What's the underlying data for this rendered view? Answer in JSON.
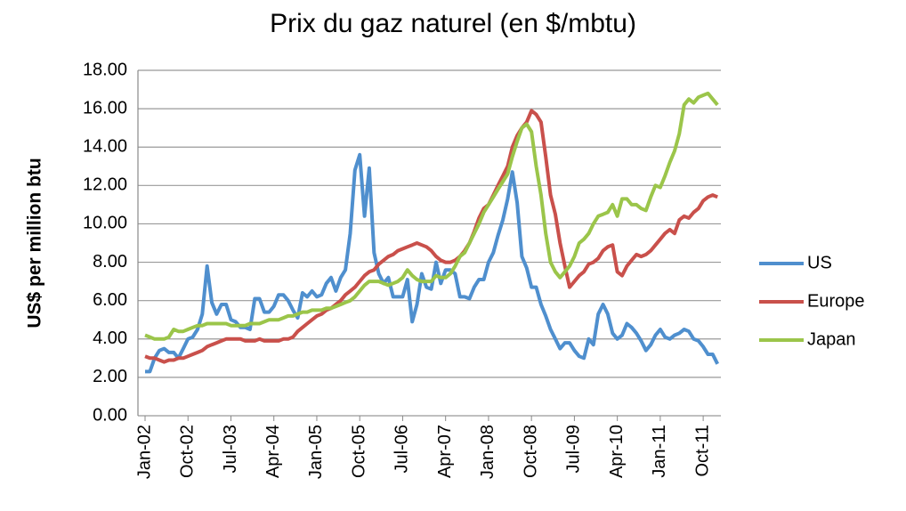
{
  "chart_data": {
    "type": "line",
    "title": "Prix du gaz naturel (en $/mbtu)",
    "y_label": "US$ per million btu",
    "categories": [
      "Jan-02",
      null,
      null,
      null,
      null,
      null,
      null,
      null,
      null,
      "Oct-02",
      null,
      null,
      null,
      null,
      null,
      null,
      null,
      null,
      "Jul-03",
      null,
      null,
      null,
      null,
      null,
      null,
      null,
      null,
      "Apr-04",
      null,
      null,
      null,
      null,
      null,
      null,
      null,
      null,
      "Jan-05",
      null,
      null,
      null,
      null,
      null,
      null,
      null,
      null,
      "Oct-05",
      null,
      null,
      null,
      null,
      null,
      null,
      null,
      null,
      "Jul-06",
      null,
      null,
      null,
      null,
      null,
      null,
      null,
      null,
      "Apr-07",
      null,
      null,
      null,
      null,
      null,
      null,
      null,
      null,
      "Jan-08",
      null,
      null,
      null,
      null,
      null,
      null,
      null,
      null,
      "Oct-08",
      null,
      null,
      null,
      null,
      null,
      null,
      null,
      null,
      "Jul-09",
      null,
      null,
      null,
      null,
      null,
      null,
      null,
      null,
      "Apr-10",
      null,
      null,
      null,
      null,
      null,
      null,
      null,
      null,
      "Jan-11",
      null,
      null,
      null,
      null,
      null,
      null,
      null,
      null,
      "Oct-11",
      null,
      null,
      null
    ],
    "series": [
      {
        "name": "US",
        "color": "#4f8fce",
        "values": [
          2.3,
          2.3,
          3.0,
          3.4,
          3.5,
          3.3,
          3.3,
          3.0,
          3.5,
          4.0,
          4.1,
          4.5,
          5.3,
          7.8,
          5.9,
          5.3,
          5.8,
          5.8,
          5.0,
          4.9,
          4.6,
          4.6,
          4.5,
          6.1,
          6.1,
          5.4,
          5.4,
          5.7,
          6.3,
          6.3,
          6.0,
          5.5,
          5.1,
          6.4,
          6.2,
          6.5,
          6.2,
          6.3,
          6.9,
          7.2,
          6.5,
          7.2,
          7.6,
          9.5,
          12.8,
          13.6,
          10.4,
          12.9,
          8.5,
          7.4,
          6.9,
          7.2,
          6.2,
          6.2,
          6.2,
          7.1,
          4.9,
          5.8,
          7.4,
          6.7,
          6.6,
          8.0,
          6.9,
          7.6,
          7.6,
          7.4,
          6.2,
          6.2,
          6.1,
          6.7,
          7.1,
          7.1,
          8.0,
          8.5,
          9.4,
          10.2,
          11.3,
          12.7,
          11.1,
          8.3,
          7.7,
          6.7,
          6.7,
          5.8,
          5.2,
          4.5,
          4.0,
          3.5,
          3.8,
          3.8,
          3.4,
          3.1,
          3.0,
          4.0,
          3.7,
          5.3,
          5.8,
          5.3,
          4.3,
          4.0,
          4.2,
          4.8,
          4.6,
          4.3,
          3.9,
          3.4,
          3.7,
          4.2,
          4.5,
          4.1,
          4.0,
          4.2,
          4.3,
          4.5,
          4.4,
          4.0,
          3.9,
          3.6,
          3.2,
          3.2,
          2.7
        ]
      },
      {
        "name": "Europe",
        "color": "#c9504b",
        "values": [
          3.1,
          3.0,
          3.0,
          2.9,
          2.8,
          2.9,
          2.9,
          3.0,
          3.0,
          3.1,
          3.2,
          3.3,
          3.4,
          3.6,
          3.7,
          3.8,
          3.9,
          4.0,
          4.0,
          4.0,
          4.0,
          3.9,
          3.9,
          3.9,
          4.0,
          3.9,
          3.9,
          3.9,
          3.9,
          4.0,
          4.0,
          4.1,
          4.4,
          4.6,
          4.8,
          5.0,
          5.2,
          5.3,
          5.5,
          5.6,
          5.8,
          6.0,
          6.3,
          6.5,
          6.7,
          7.0,
          7.3,
          7.5,
          7.6,
          7.9,
          8.1,
          8.3,
          8.4,
          8.6,
          8.7,
          8.8,
          8.9,
          9.0,
          8.9,
          8.8,
          8.6,
          8.3,
          8.1,
          8.0,
          8.0,
          8.1,
          8.3,
          8.6,
          9.0,
          9.6,
          10.3,
          10.8,
          11.0,
          11.5,
          12.0,
          12.5,
          13.0,
          14.0,
          14.6,
          15.0,
          15.3,
          15.9,
          15.7,
          15.3,
          13.5,
          11.5,
          10.5,
          9.0,
          7.8,
          6.7,
          7.0,
          7.3,
          7.5,
          7.9,
          8.0,
          8.2,
          8.6,
          8.8,
          8.9,
          7.5,
          7.3,
          7.8,
          8.1,
          8.4,
          8.3,
          8.4,
          8.6,
          8.9,
          9.2,
          9.5,
          9.7,
          9.5,
          10.2,
          10.4,
          10.3,
          10.6,
          10.8,
          11.2,
          11.4,
          11.5,
          11.4
        ]
      },
      {
        "name": "Japan",
        "color": "#9bc54a",
        "values": [
          4.2,
          4.1,
          4.0,
          4.0,
          4.0,
          4.1,
          4.5,
          4.4,
          4.4,
          4.5,
          4.6,
          4.7,
          4.7,
          4.8,
          4.8,
          4.8,
          4.8,
          4.8,
          4.7,
          4.7,
          4.7,
          4.7,
          4.8,
          4.8,
          4.8,
          4.9,
          5.0,
          5.0,
          5.0,
          5.1,
          5.2,
          5.2,
          5.3,
          5.4,
          5.4,
          5.5,
          5.5,
          5.5,
          5.6,
          5.6,
          5.7,
          5.8,
          5.9,
          6.0,
          6.2,
          6.5,
          6.8,
          7.0,
          7.0,
          7.0,
          6.9,
          6.8,
          6.9,
          7.0,
          7.2,
          7.6,
          7.3,
          7.1,
          7.0,
          7.0,
          7.0,
          7.3,
          7.2,
          7.2,
          7.4,
          7.8,
          8.3,
          8.5,
          9.0,
          9.5,
          10.0,
          10.6,
          11.0,
          11.4,
          11.8,
          12.2,
          12.6,
          13.5,
          14.3,
          15.0,
          15.2,
          14.8,
          13.0,
          11.5,
          9.5,
          8.0,
          7.5,
          7.2,
          7.5,
          7.8,
          8.3,
          9.0,
          9.2,
          9.5,
          10.0,
          10.4,
          10.5,
          10.6,
          11.0,
          10.4,
          11.3,
          11.3,
          11.0,
          11.0,
          10.8,
          10.7,
          11.4,
          12.0,
          11.9,
          12.5,
          13.2,
          13.8,
          14.7,
          16.2,
          16.5,
          16.3,
          16.6,
          16.7,
          16.8,
          16.5,
          16.2
        ]
      }
    ],
    "ylim": [
      0,
      18
    ],
    "yticks": [
      {
        "value": 0,
        "label": "0.00"
      },
      {
        "value": 2,
        "label": "2.00"
      },
      {
        "value": 4,
        "label": "4.00"
      },
      {
        "value": 6,
        "label": "6.00"
      },
      {
        "value": 8,
        "label": "8.00"
      },
      {
        "value": 10,
        "label": "10.00"
      },
      {
        "value": 12,
        "label": "12.00"
      },
      {
        "value": 14,
        "label": "14.00"
      },
      {
        "value": 16,
        "label": "16.00"
      },
      {
        "value": 18,
        "label": "18.00"
      }
    ],
    "grid": true,
    "legend": "right"
  }
}
